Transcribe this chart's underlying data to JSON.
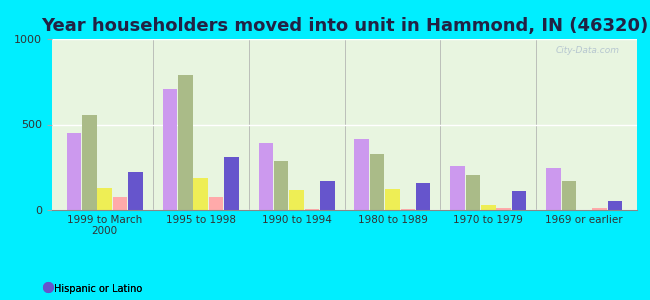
{
  "title": "Year householders moved into unit in Hammond, IN (46320)",
  "categories": [
    "1999 to March\n2000",
    "1995 to 1998",
    "1990 to 1994",
    "1980 to 1989",
    "1970 to 1979",
    "1969 or earlier"
  ],
  "series": {
    "White Non-Hispanic": [
      450,
      710,
      390,
      415,
      255,
      245
    ],
    "Black": [
      555,
      790,
      285,
      330,
      205,
      170
    ],
    "Other Race": [
      130,
      185,
      115,
      125,
      30,
      0
    ],
    "Two or More Races": [
      75,
      75,
      5,
      5,
      10,
      10
    ],
    "Hispanic or Latino": [
      225,
      310,
      170,
      155,
      110,
      55
    ]
  },
  "colors": {
    "White Non-Hispanic": "#cc99ee",
    "Black": "#aabb88",
    "Other Race": "#eeee55",
    "Two or More Races": "#ffaaaa",
    "Hispanic or Latino": "#6655cc"
  },
  "legend_marker_colors": {
    "White Non-Hispanic": "#cc99ee",
    "Black": "#bbcc99",
    "Other Race": "#eeee55",
    "Two or More Races": "#ffaaaa",
    "Hispanic or Latino": "#6655cc"
  },
  "ylim": [
    0,
    1000
  ],
  "yticks": [
    0,
    500,
    1000
  ],
  "figure_bg": "#00eeff",
  "plot_bg": "#e8f5e0",
  "title_fontsize": 13,
  "title_color": "#222244",
  "watermark": "City-Data.com"
}
